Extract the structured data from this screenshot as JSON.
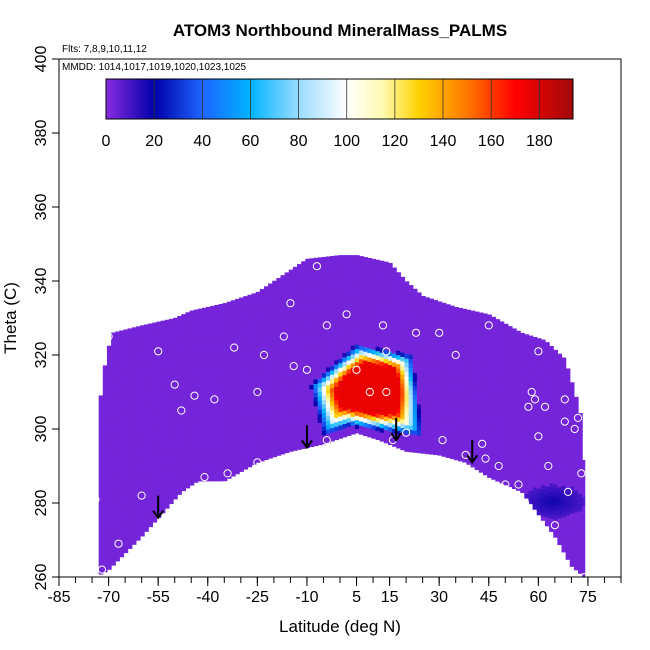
{
  "chart_data": {
    "type": "heatmap",
    "title": "ATOM3 Northbound MineralMass_PALMS",
    "subtitle_flights": "Flts: 7,8,9,10,11,12",
    "subtitle_dates": "MMDD: 1014,1017,1019,1020,1023,1025",
    "xlabel": "Latitude (deg N)",
    "ylabel": "Theta (C)",
    "xlim": [
      -85,
      85
    ],
    "ylim": [
      260,
      400
    ],
    "x_ticks": [
      -85,
      -70,
      -55,
      -40,
      -25,
      -10,
      5,
      15,
      30,
      45,
      60,
      75
    ],
    "x_tick_labels": [
      "-85",
      "-70",
      "-55",
      "-40",
      "-25",
      "-10",
      "5",
      "15",
      "30",
      "45",
      "60",
      "75"
    ],
    "x_minor_step": 5,
    "y_ticks": [
      260,
      280,
      300,
      320,
      340,
      360,
      380,
      400
    ],
    "y_tick_labels": [
      "260",
      "280",
      "300",
      "320",
      "340",
      "360",
      "380",
      "400"
    ],
    "colorbar": {
      "range": [
        0,
        194
      ],
      "ticks": [
        0,
        20,
        40,
        60,
        80,
        100,
        120,
        140,
        160,
        180
      ],
      "tick_labels": [
        "0",
        "20",
        "40",
        "60",
        "80",
        "100",
        "120",
        "140",
        "160",
        "180"
      ],
      "stops": [
        {
          "v": 0,
          "color": "#8a2be2"
        },
        {
          "v": 20,
          "color": "#0000a8"
        },
        {
          "v": 40,
          "color": "#1e64ff"
        },
        {
          "v": 60,
          "color": "#00b4ff"
        },
        {
          "v": 80,
          "color": "#9adcff"
        },
        {
          "v": 100,
          "color": "#ffffff"
        },
        {
          "v": 115,
          "color": "#fffab0"
        },
        {
          "v": 130,
          "color": "#ffd200"
        },
        {
          "v": 150,
          "color": "#ff7800"
        },
        {
          "v": 170,
          "color": "#ff0000"
        },
        {
          "v": 194,
          "color": "#a00a0a"
        }
      ]
    },
    "background_value": 3,
    "domain_top": [
      [
        -73,
        305
      ],
      [
        -71,
        318
      ],
      [
        -69,
        326
      ],
      [
        -60,
        328
      ],
      [
        -50,
        330
      ],
      [
        -45,
        332
      ],
      [
        -35,
        334
      ],
      [
        -25,
        337
      ],
      [
        -15,
        343
      ],
      [
        -10,
        346
      ],
      [
        0,
        347
      ],
      [
        5,
        347
      ],
      [
        15,
        345
      ],
      [
        20,
        340
      ],
      [
        25,
        336
      ],
      [
        35,
        333
      ],
      [
        45,
        331
      ],
      [
        55,
        326
      ],
      [
        62,
        324
      ],
      [
        68,
        319
      ],
      [
        71,
        310
      ],
      [
        73,
        303
      ],
      [
        74,
        290
      ]
    ],
    "domain_bottom": [
      [
        -74,
        260
      ],
      [
        -70,
        262
      ],
      [
        -60,
        271
      ],
      [
        -55,
        276
      ],
      [
        -48,
        283
      ],
      [
        -43,
        286
      ],
      [
        -35,
        286
      ],
      [
        -25,
        291
      ],
      [
        -15,
        294
      ],
      [
        -5,
        296
      ],
      [
        5,
        299
      ],
      [
        12,
        297
      ],
      [
        20,
        294
      ],
      [
        30,
        293
      ],
      [
        38,
        291
      ],
      [
        45,
        287
      ],
      [
        55,
        283
      ],
      [
        60,
        277
      ],
      [
        65,
        271
      ],
      [
        70,
        263
      ],
      [
        74,
        260
      ]
    ],
    "plume": {
      "center": [
        10,
        311
      ],
      "peak": 175,
      "outline": [
        [
          -9,
          312
        ],
        [
          5,
          323
        ],
        [
          22,
          320
        ],
        [
          25,
          298
        ],
        [
          3,
          301
        ],
        [
          -5,
          298
        ]
      ]
    },
    "minor_features": [
      {
        "label": "blue patch",
        "x": [
          55,
          74
        ],
        "y": [
          276,
          285
        ],
        "value": 18
      }
    ],
    "samples": [
      [
        -72,
        262
      ],
      [
        -74,
        281
      ],
      [
        -67,
        269
      ],
      [
        -60,
        282
      ],
      [
        -55,
        321
      ],
      [
        -50,
        312
      ],
      [
        -48,
        305
      ],
      [
        -44,
        309
      ],
      [
        -41,
        287
      ],
      [
        -38,
        308
      ],
      [
        -34,
        288
      ],
      [
        -32,
        322
      ],
      [
        -25,
        291
      ],
      [
        -25,
        310
      ],
      [
        -23,
        320
      ],
      [
        -17,
        325
      ],
      [
        -14,
        317
      ],
      [
        -10,
        316
      ],
      [
        -7,
        344
      ],
      [
        -4,
        328
      ],
      [
        -4,
        297
      ],
      [
        2,
        331
      ],
      [
        5,
        316
      ],
      [
        9,
        310
      ],
      [
        13,
        328
      ],
      [
        14,
        321
      ],
      [
        14,
        310
      ],
      [
        16,
        297
      ],
      [
        20,
        299
      ],
      [
        23,
        326
      ],
      [
        30,
        326
      ],
      [
        31,
        297
      ],
      [
        35,
        320
      ],
      [
        38,
        293
      ],
      [
        43,
        296
      ],
      [
        44,
        292
      ],
      [
        45,
        328
      ],
      [
        48,
        290
      ],
      [
        50,
        285
      ],
      [
        54,
        285
      ],
      [
        56,
        280
      ],
      [
        57,
        306
      ],
      [
        58,
        310
      ],
      [
        59,
        308
      ],
      [
        60,
        321
      ],
      [
        60,
        298
      ],
      [
        62,
        306
      ],
      [
        63,
        290
      ],
      [
        65,
        274
      ],
      [
        68,
        308
      ],
      [
        68,
        302
      ],
      [
        69,
        283
      ],
      [
        71,
        300
      ],
      [
        72,
        303
      ],
      [
        73,
        288
      ],
      [
        74,
        260
      ],
      [
        -70,
        325
      ],
      [
        -15,
        334
      ]
    ],
    "arrows": [
      {
        "x": -55,
        "y_top": 282,
        "y_tip": 276
      },
      {
        "x": -10,
        "y_top": 301,
        "y_tip": 295
      },
      {
        "x": 17,
        "y_top": 303,
        "y_tip": 297
      },
      {
        "x": 40,
        "y_top": 297,
        "y_tip": 291
      }
    ]
  }
}
